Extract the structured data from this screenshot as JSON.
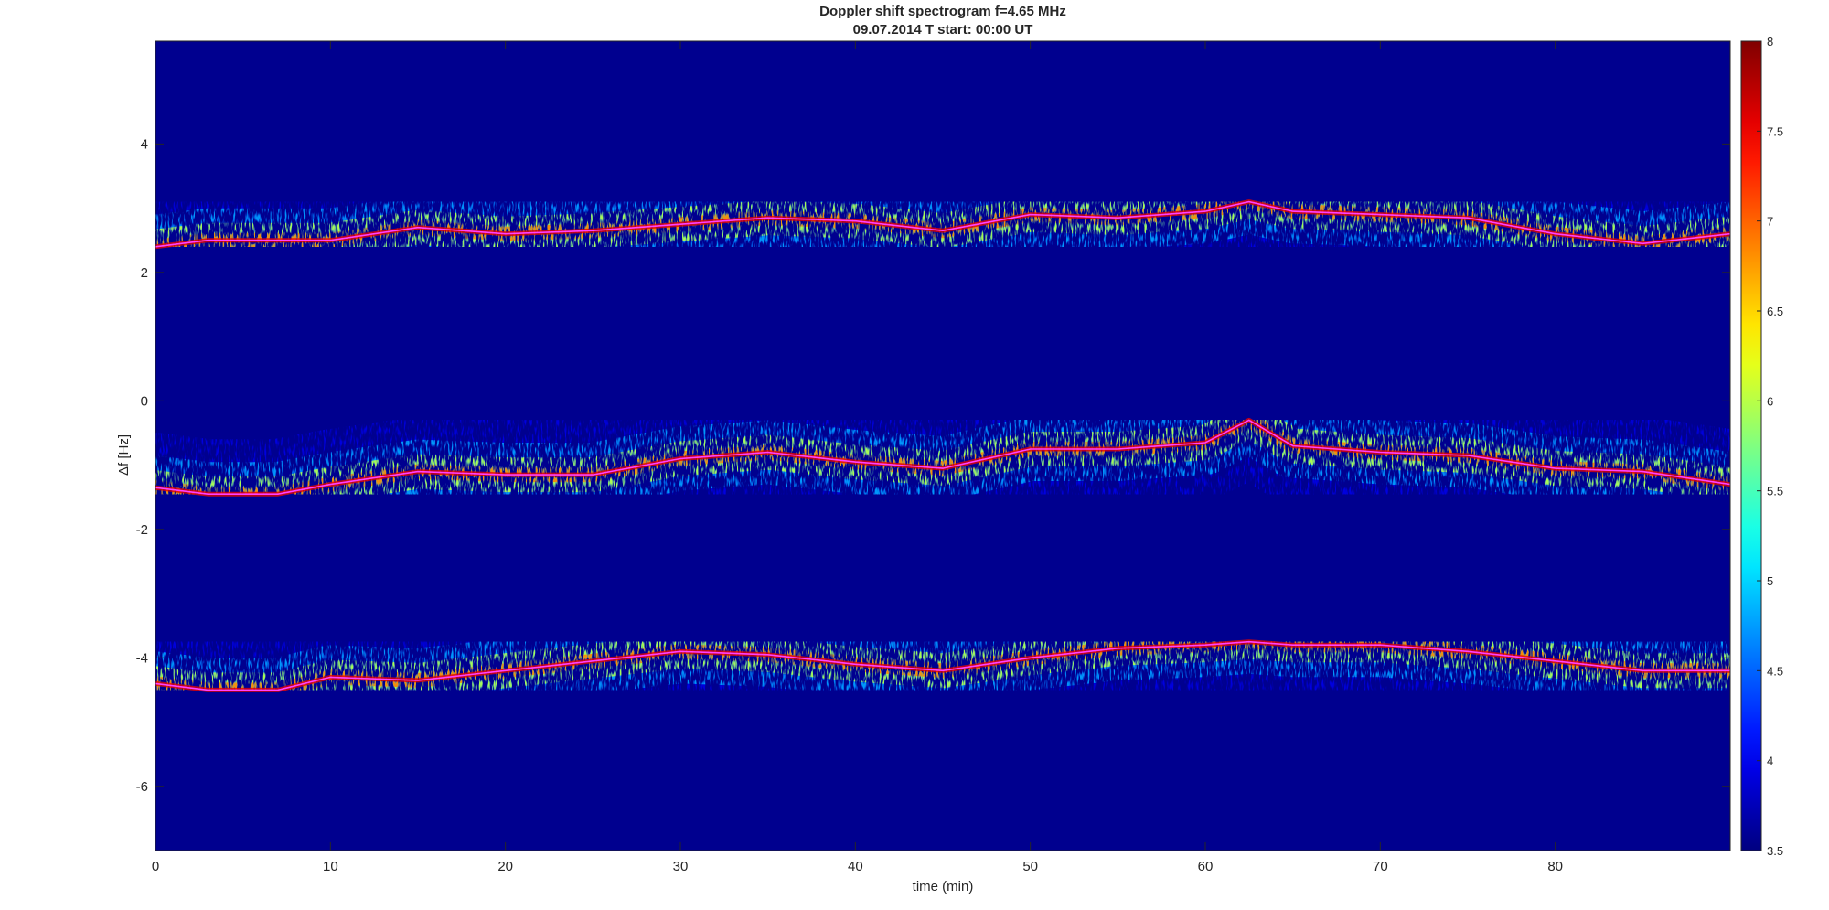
{
  "chart_data": {
    "type": "heatmap",
    "title": "Doppler shift spectrogram f=4.65 MHz",
    "subtitle": "09.07.2014   T start: 00:00 UT",
    "xlabel": "time (min)",
    "ylabel": "Δf [Hz]",
    "xlim": [
      0,
      90
    ],
    "ylim": [
      -7,
      5.6
    ],
    "x_ticks": [
      "0",
      "10",
      "20",
      "30",
      "40",
      "50",
      "60",
      "70",
      "80"
    ],
    "y_ticks": [
      "-6",
      "-4",
      "-2",
      "0",
      "2",
      "4"
    ],
    "colorbar": {
      "range": [
        3.5,
        8
      ],
      "ticks": [
        "3.5",
        "4",
        "4.5",
        "5",
        "5.5",
        "6",
        "6.5",
        "7",
        "7.5",
        "8"
      ],
      "colormap": "jet"
    },
    "background_color": "#00008f",
    "trace_color": "#ff40ff",
    "series": [
      {
        "x": [
          0,
          3,
          7,
          10,
          15,
          20,
          25,
          30,
          35,
          40,
          45,
          50,
          55,
          60,
          62.5,
          65,
          70,
          75,
          80,
          85,
          90
        ],
        "y": [
          2.4,
          2.5,
          2.5,
          2.5,
          2.7,
          2.6,
          2.65,
          2.75,
          2.85,
          2.8,
          2.65,
          2.9,
          2.85,
          2.95,
          3.1,
          2.95,
          2.9,
          2.85,
          2.6,
          2.45,
          2.6
        ]
      },
      {
        "x": [
          0,
          3,
          7,
          10,
          15,
          20,
          25,
          30,
          35,
          40,
          45,
          50,
          55,
          60,
          62.5,
          65,
          70,
          75,
          80,
          85,
          90
        ],
        "y": [
          -1.35,
          -1.45,
          -1.45,
          -1.3,
          -1.1,
          -1.15,
          -1.15,
          -0.9,
          -0.8,
          -0.95,
          -1.05,
          -0.75,
          -0.75,
          -0.65,
          -0.3,
          -0.7,
          -0.8,
          -0.85,
          -1.05,
          -1.1,
          -1.3
        ]
      },
      {
        "x": [
          0,
          3,
          7,
          10,
          15,
          20,
          25,
          30,
          35,
          40,
          45,
          50,
          55,
          60,
          62.5,
          65,
          70,
          75,
          80,
          85,
          90
        ],
        "y": [
          -4.4,
          -4.5,
          -4.5,
          -4.3,
          -4.35,
          -4.2,
          -4.05,
          -3.9,
          -3.95,
          -4.1,
          -4.2,
          -4.0,
          -3.85,
          -3.8,
          -3.75,
          -3.8,
          -3.8,
          -3.9,
          -4.05,
          -4.2,
          -4.2
        ]
      }
    ]
  }
}
